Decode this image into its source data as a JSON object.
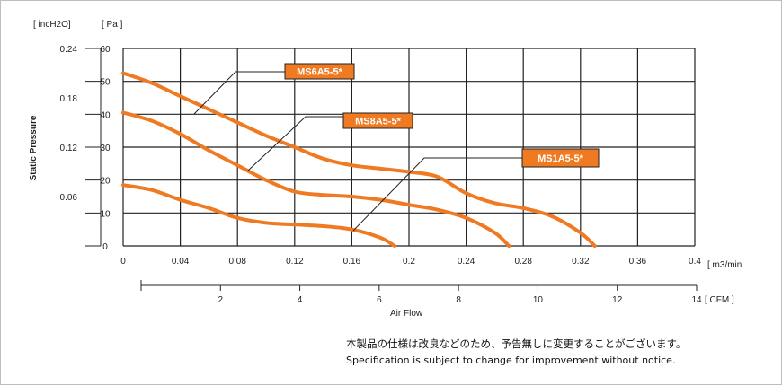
{
  "chart_data": {
    "type": "line",
    "ylabel": "Static Pressure",
    "y_units": [
      "[ incH2O]",
      "[ Pa ]"
    ],
    "y_ticks_inch": [
      "0.24",
      "0.18",
      "0.12",
      "0.06"
    ],
    "y_ticks_pa": [
      "60",
      "50",
      "40",
      "30",
      "20",
      "10",
      "0"
    ],
    "x_ticks_m3": [
      "0",
      "0.04",
      "0.08",
      "0.12",
      "0.16",
      "0.2",
      "0.24",
      "0.28",
      "0.32",
      "0.36",
      "0.4"
    ],
    "x_unit_m3": "[ m3/min",
    "x_ticks_cfm": [
      "2",
      "4",
      "6",
      "8",
      "10",
      "12",
      "14"
    ],
    "x_unit_cfm": "[ CFM ]",
    "xlabel": "Air   Flow",
    "xlim": [
      0,
      0.4
    ],
    "ylim": [
      0,
      60
    ],
    "grid": true,
    "line_color": "#f07a22",
    "series": [
      {
        "name": "MS6A5-5*",
        "x": [
          0,
          0.02,
          0.04,
          0.06,
          0.08,
          0.1,
          0.12,
          0.14,
          0.16,
          0.18,
          0.2,
          0.22,
          0.24,
          0.26,
          0.28,
          0.3,
          0.32,
          0.33
        ],
        "y": [
          52.5,
          49.5,
          45.5,
          41.5,
          37.5,
          33.5,
          30,
          26.5,
          24.5,
          23.5,
          22.5,
          21,
          16,
          13,
          11.5,
          9,
          4,
          0
        ]
      },
      {
        "name": "MS8A5-5*",
        "x": [
          0,
          0.02,
          0.04,
          0.06,
          0.08,
          0.1,
          0.12,
          0.14,
          0.16,
          0.18,
          0.2,
          0.22,
          0.24,
          0.26,
          0.27
        ],
        "y": [
          40.5,
          38,
          34,
          29,
          24.5,
          20,
          16.5,
          15.5,
          15,
          14,
          12.5,
          11,
          8.5,
          4,
          0
        ]
      },
      {
        "name": "MS1A5-5*",
        "x": [
          0,
          0.02,
          0.04,
          0.06,
          0.08,
          0.1,
          0.12,
          0.14,
          0.16,
          0.18,
          0.19
        ],
        "y": [
          18.5,
          17,
          14,
          11.5,
          8.5,
          7,
          6.5,
          6,
          5,
          2.5,
          0
        ]
      }
    ]
  },
  "notice": {
    "jp": "本製品の仕様は改良などのため、予告無しに変更することがございます。",
    "en": "Specification is subject to change for improvement without notice."
  }
}
